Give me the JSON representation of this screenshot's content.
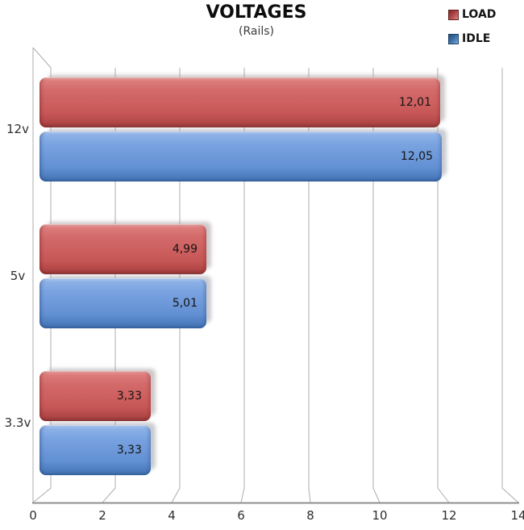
{
  "title": "VOLTAGES",
  "subtitle": "(Rails)",
  "colors": {
    "load_bar": "#CE6060",
    "idle_bar": "#6E99DA",
    "gridline": "#ACACAC",
    "axis_line": "#8F8F8F",
    "label_text": "#141414"
  },
  "chart_data": {
    "type": "bar",
    "orientation": "horizontal",
    "style": "3d-perspective",
    "title": "VOLTAGES",
    "subtitle": "(Rails)",
    "categories": [
      "12v",
      "5v",
      "3.3v"
    ],
    "series": [
      {
        "name": "LOAD",
        "color": "#CE6060",
        "values": [
          12.01,
          4.99,
          3.33
        ],
        "value_labels": [
          "12,01",
          "4,99",
          "3,33"
        ]
      },
      {
        "name": "IDLE",
        "color": "#6E99DA",
        "values": [
          12.05,
          5.01,
          3.33
        ],
        "value_labels": [
          "12,05",
          "5,01",
          "3,33"
        ]
      }
    ],
    "xlim": [
      0,
      14
    ],
    "x_ticks": [
      0,
      2,
      4,
      6,
      8,
      10,
      12,
      14
    ],
    "x_tick_labels": [
      "0",
      "2",
      "4",
      "6",
      "8",
      "10",
      "12",
      "14"
    ],
    "grid": true,
    "legend_position": "top-right",
    "decimal_separator": ","
  }
}
